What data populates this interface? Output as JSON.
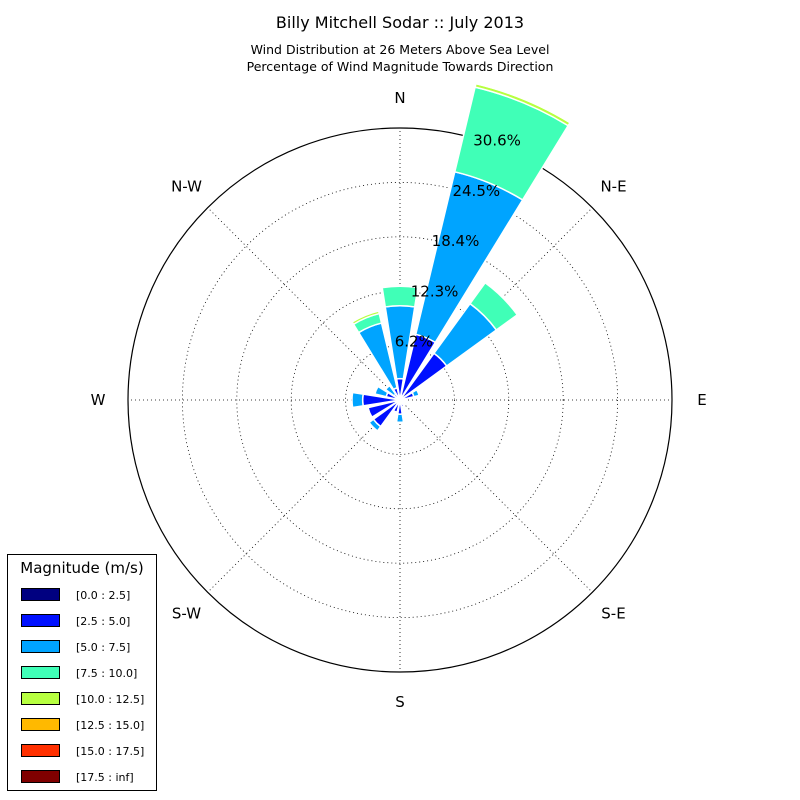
{
  "chart_data": {
    "type": "windrose",
    "title": "Billy Mitchell Sodar :: July 2013",
    "subtitle_lines": [
      "Wind Distribution at 26 Meters Above Sea Level",
      "Percentage of Wind Magnitude Towards Direction"
    ],
    "directions": [
      "N",
      "NNE",
      "NE",
      "ENE",
      "E",
      "ESE",
      "SE",
      "SSE",
      "S",
      "SSW",
      "SW",
      "WSW",
      "W",
      "WNW",
      "NW",
      "NNW"
    ],
    "direction_labels": [
      "N",
      "N-E",
      "E",
      "S-E",
      "S",
      "S-W",
      "W",
      "N-W"
    ],
    "ring_labels": [
      "6.2%",
      "12.3%",
      "18.4%",
      "24.5%",
      "30.6%"
    ],
    "r_max": 30.6,
    "legend": {
      "title": "Magnitude (m/s)",
      "bins": [
        "[0.0 : 2.5]",
        "[2.5 : 5.0]",
        "[5.0 : 7.5]",
        "[7.5 : 10.0]",
        "[10.0 : 12.5]",
        "[12.5 : 15.0]",
        "[15.0 : 17.5]",
        "[17.5 : inf]"
      ],
      "colors": [
        "#000080",
        "#0010ff",
        "#00a4ff",
        "#40ffb7",
        "#b7ff40",
        "#ffb900",
        "#ff3000",
        "#800000"
      ]
    },
    "series": [
      {
        "name": "[0.0 : 2.5]",
        "values": [
          0.3,
          0.3,
          0.3,
          0.3,
          0.3,
          0.3,
          0.3,
          0.3,
          0.3,
          0.3,
          0.3,
          0.3,
          0.3,
          0.3,
          0.3,
          0.3
        ]
      },
      {
        "name": "[2.5 : 5.0]",
        "values": [
          2.1,
          7.3,
          6.2,
          1.3,
          0.3,
          0.2,
          0.3,
          0.5,
          1.3,
          1.1,
          3.4,
          3.4,
          3.9,
          1.3,
          0.5,
          1.1
        ]
      },
      {
        "name": "[5.0 : 7.5]",
        "values": [
          8.2,
          18.8,
          6.9,
          0.6,
          0.0,
          0.0,
          0.0,
          0.0,
          0.9,
          0.0,
          0.6,
          0.0,
          1.2,
          1.3,
          1.2,
          7.5
        ]
      },
      {
        "name": "[7.5 : 10.0]",
        "values": [
          2.2,
          9.8,
          2.9,
          0.0,
          0.0,
          0.0,
          0.0,
          0.0,
          0.0,
          0.0,
          0.0,
          0.0,
          0.0,
          0.0,
          0.0,
          1.1
        ]
      },
      {
        "name": "[10.0 : 12.5]",
        "values": [
          0.0,
          0.4,
          0.0,
          0.0,
          0.0,
          0.0,
          0.0,
          0.0,
          0.0,
          0.0,
          0.0,
          0.0,
          0.0,
          0.0,
          0.0,
          0.3
        ]
      },
      {
        "name": "[12.5 : 15.0]",
        "values": [
          0.0,
          0.1,
          0.0,
          0.0,
          0.0,
          0.0,
          0.0,
          0.0,
          0.0,
          0.0,
          0.0,
          0.0,
          0.0,
          0.0,
          0.0,
          0.0
        ]
      },
      {
        "name": "[15.0 : 17.5]",
        "values": [
          0,
          0,
          0,
          0,
          0,
          0,
          0,
          0,
          0,
          0,
          0,
          0,
          0,
          0,
          0,
          0
        ]
      },
      {
        "name": "[17.5 : inf]",
        "values": [
          0,
          0,
          0,
          0,
          0,
          0,
          0,
          0,
          0,
          0,
          0,
          0,
          0,
          0,
          0,
          0
        ]
      }
    ],
    "grid": true,
    "legend_placement": "bottom-left"
  }
}
